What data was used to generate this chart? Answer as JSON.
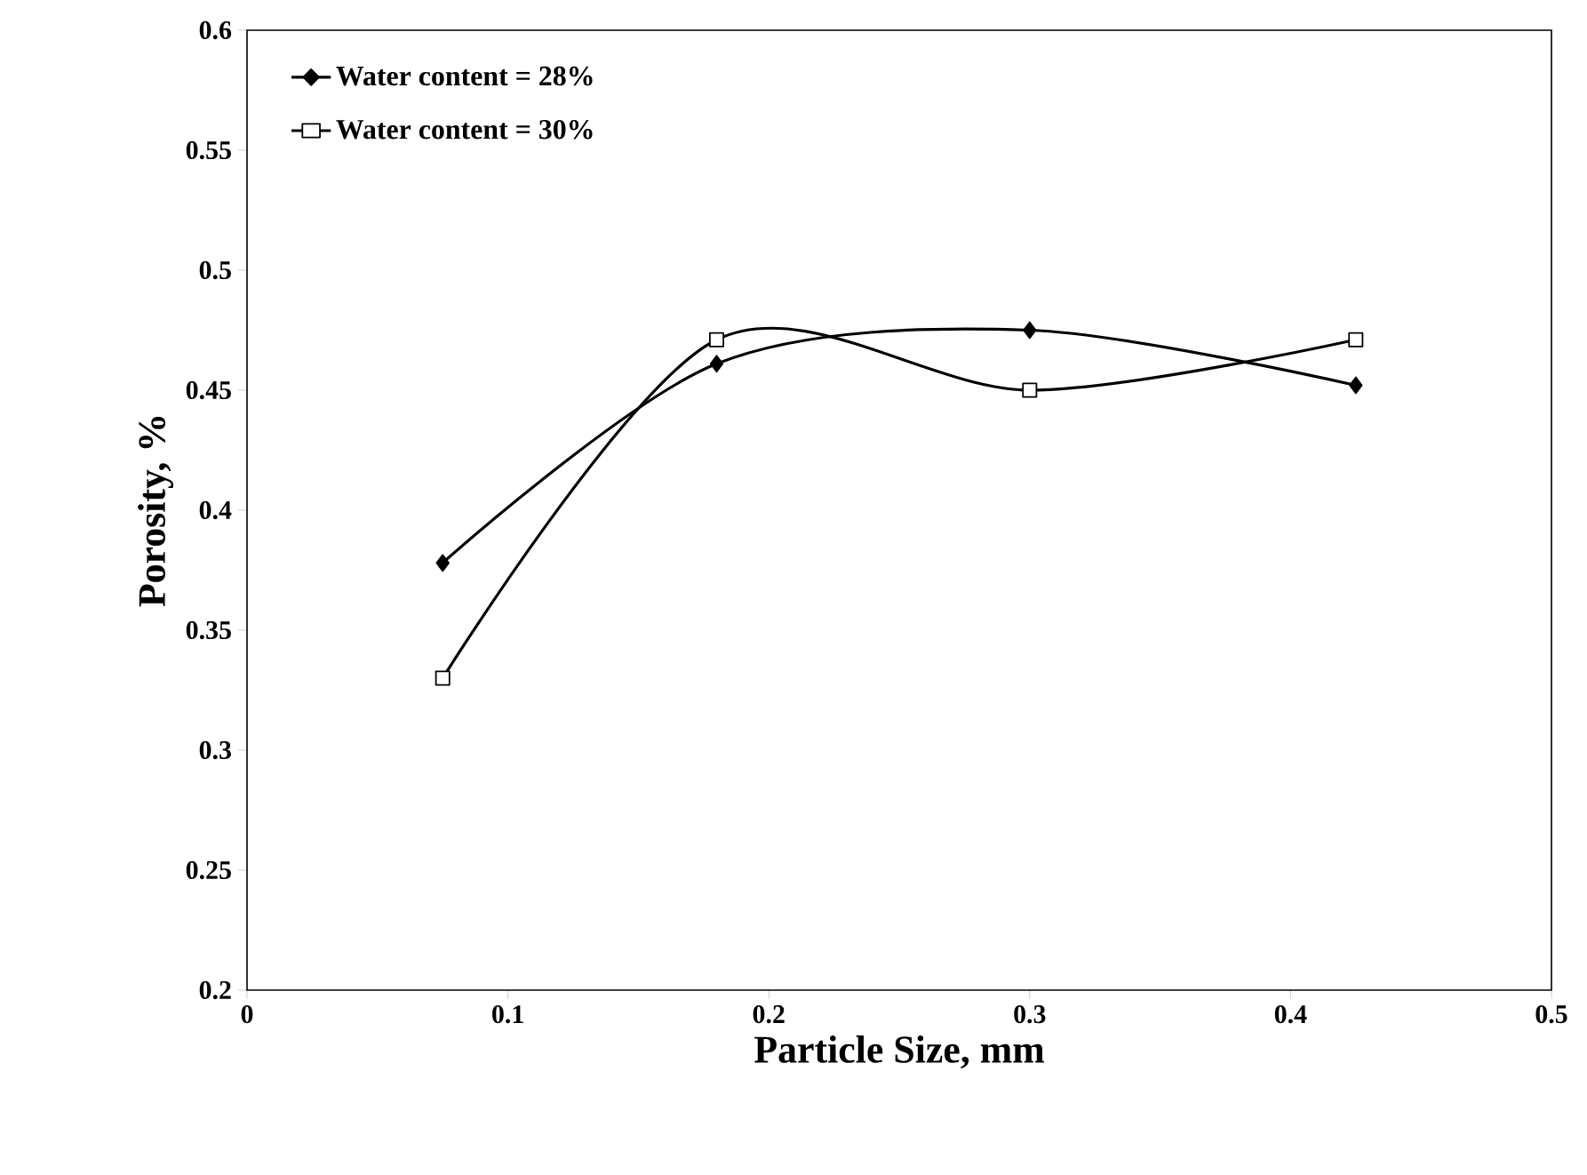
{
  "chart_data": {
    "type": "line",
    "xlabel": "Particle Size, mm",
    "ylabel": "Porosity, %",
    "x": [
      0.075,
      0.18,
      0.3,
      0.425
    ],
    "series": [
      {
        "name": "Water content = 28%",
        "color": "#000000",
        "marker": "diamond",
        "values": [
          0.378,
          0.461,
          0.475,
          0.452
        ]
      },
      {
        "name": "Water content = 30%",
        "color": "#000000",
        "marker": "square",
        "values": [
          0.33,
          0.471,
          0.45,
          0.471
        ]
      }
    ],
    "xlim": [
      0,
      0.5
    ],
    "xticks": [
      0,
      0.1,
      0.2,
      0.3,
      0.4,
      0.5
    ],
    "ylim": [
      0.2,
      0.6
    ],
    "yticks": [
      0.2,
      0.25,
      0.3,
      0.35,
      0.4,
      0.45,
      0.5,
      0.55,
      0.6
    ],
    "grid": false,
    "legend": "top left",
    "line_style": "solid"
  }
}
